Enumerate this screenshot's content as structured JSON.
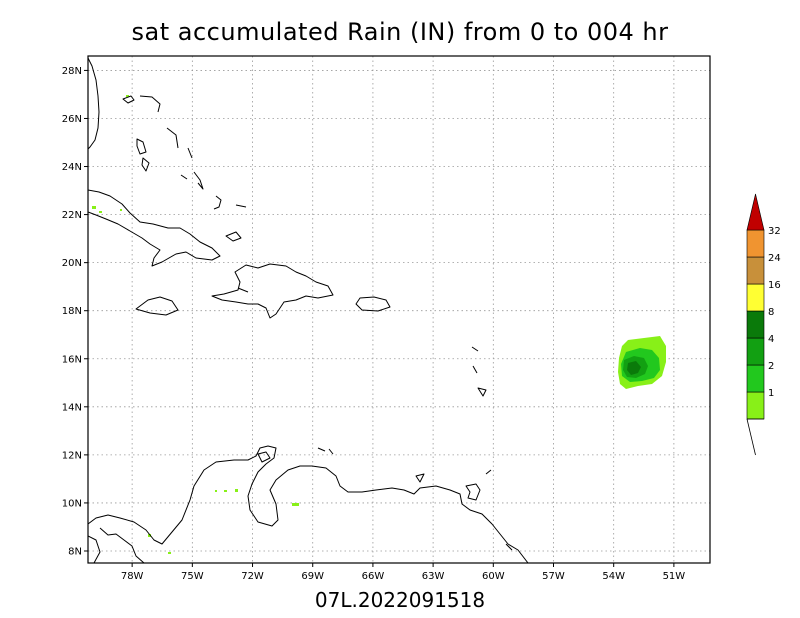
{
  "title": "sat accumulated Rain (IN) from 0 to 004 hr",
  "caption": "07L.2022091518",
  "map": {
    "lon_range": [
      -80.2,
      -49.2
    ],
    "lat_range": [
      7.5,
      28.6
    ],
    "lon_ticks": [
      {
        "value": -78,
        "label": "78W"
      },
      {
        "value": -75,
        "label": "75W"
      },
      {
        "value": -72,
        "label": "72W"
      },
      {
        "value": -69,
        "label": "69W"
      },
      {
        "value": -66,
        "label": "66W"
      },
      {
        "value": -63,
        "label": "63W"
      },
      {
        "value": -60,
        "label": "60W"
      },
      {
        "value": -57,
        "label": "57W"
      },
      {
        "value": -54,
        "label": "54W"
      },
      {
        "value": -51,
        "label": "51W"
      }
    ],
    "lat_ticks": [
      {
        "value": 8,
        "label": "8N"
      },
      {
        "value": 10,
        "label": "10N"
      },
      {
        "value": 12,
        "label": "12N"
      },
      {
        "value": 14,
        "label": "14N"
      },
      {
        "value": 16,
        "label": "16N"
      },
      {
        "value": 18,
        "label": "18N"
      },
      {
        "value": 20,
        "label": "20N"
      },
      {
        "value": 22,
        "label": "22N"
      },
      {
        "value": 24,
        "label": "24N"
      },
      {
        "value": 26,
        "label": "26N"
      },
      {
        "value": 28,
        "label": "28N"
      }
    ],
    "grid": "dotted"
  },
  "legend": {
    "levels": [
      {
        "label": "1",
        "color": "#88f018"
      },
      {
        "label": "2",
        "color": "#22c81e"
      },
      {
        "label": "4",
        "color": "#12a012"
      },
      {
        "label": "8",
        "color": "#0a7a0a"
      },
      {
        "label": "16",
        "color": "#ffff33"
      },
      {
        "label": "24",
        "color": "#c8903a"
      },
      {
        "label": "32",
        "color": "#f09430"
      }
    ],
    "over_color": "#c00000"
  }
}
